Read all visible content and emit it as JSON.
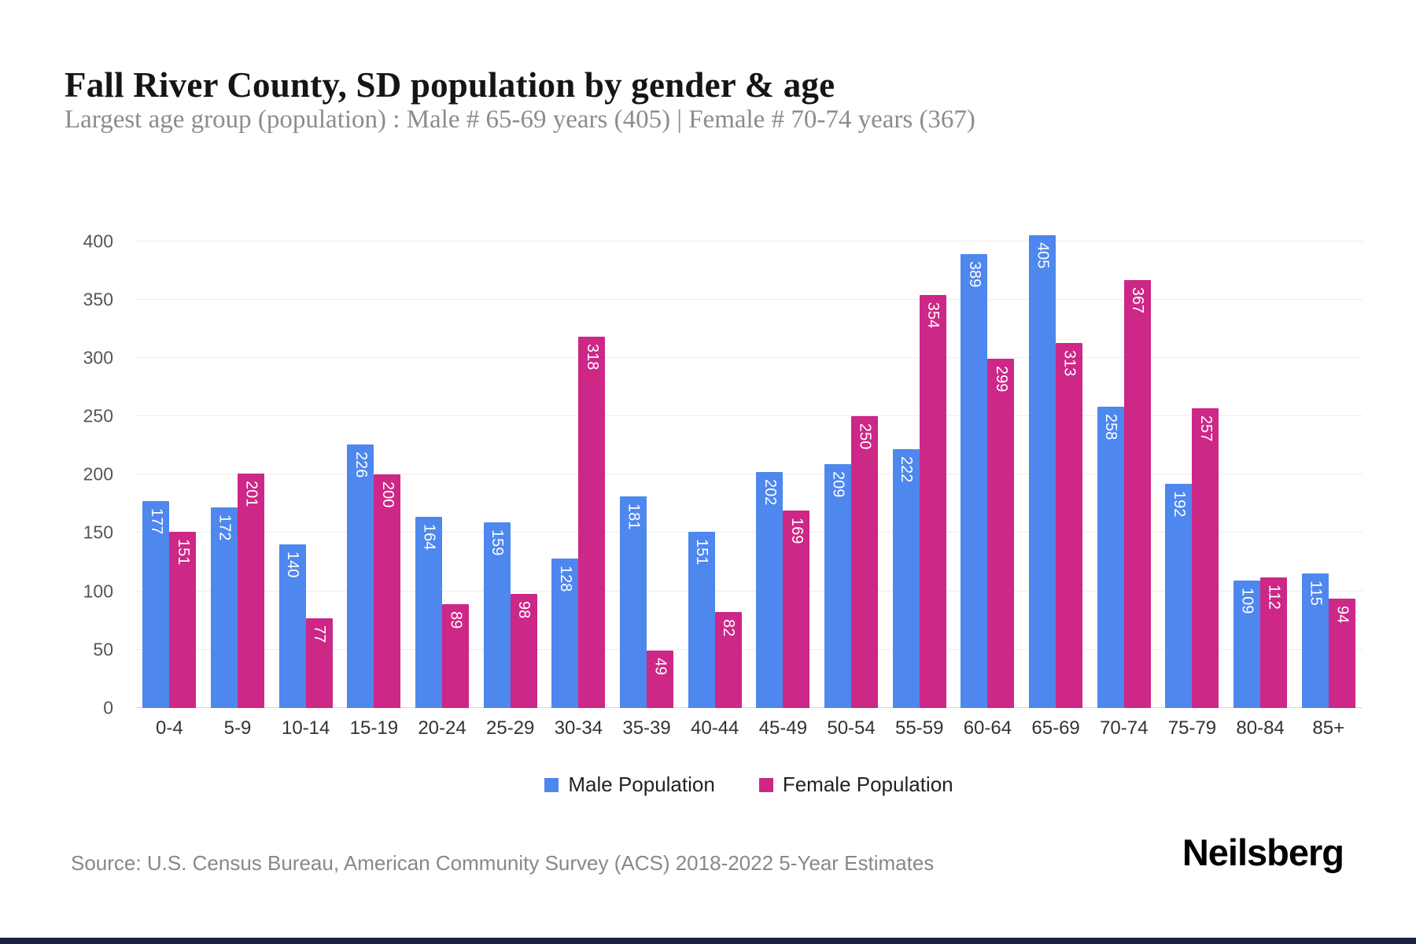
{
  "title": "Fall River County, SD population by gender & age",
  "subtitle": "Largest age group (population) : Male # 65-69 years (405) | Female # 70-74 years (367)",
  "source": "Source: U.S. Census Bureau, American Community Survey (ACS) 2018-2022 5-Year Estimates",
  "logo_text": "Neilsberg",
  "colors": {
    "male": "#4e87ee",
    "female": "#cd2787",
    "grid": "#ededed",
    "footer_bar": "#1a2142"
  },
  "chart_data": {
    "type": "bar",
    "title": "Fall River County, SD population by gender & age",
    "xlabel": "",
    "ylabel": "",
    "categories": [
      "0-4",
      "5-9",
      "10-14",
      "15-19",
      "20-24",
      "25-29",
      "30-34",
      "35-39",
      "40-44",
      "45-49",
      "50-54",
      "55-59",
      "60-64",
      "65-69",
      "70-74",
      "75-79",
      "80-84",
      "85+"
    ],
    "series": [
      {
        "name": "Male Population",
        "color_key": "male",
        "values": [
          177,
          172,
          140,
          226,
          164,
          159,
          128,
          181,
          151,
          202,
          209,
          222,
          389,
          405,
          258,
          192,
          109,
          115
        ]
      },
      {
        "name": "Female Population",
        "color_key": "female",
        "values": [
          151,
          201,
          77,
          200,
          89,
          98,
          318,
          49,
          82,
          169,
          250,
          354,
          299,
          313,
          367,
          257,
          112,
          94
        ]
      }
    ],
    "yticks": [
      0,
      50,
      100,
      150,
      200,
      250,
      300,
      350,
      400
    ],
    "ylim": [
      0,
      428
    ],
    "grid": true,
    "legend_position": "bottom",
    "bar_value_labels": "inside-top-vertical"
  }
}
